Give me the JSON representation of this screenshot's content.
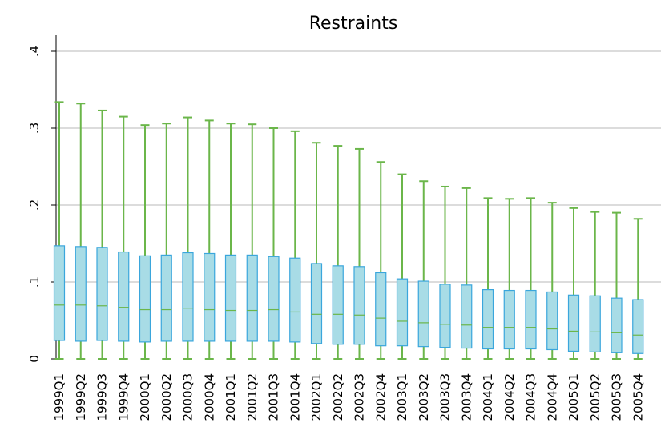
{
  "chart_data": {
    "type": "boxplot",
    "title": "Restraints",
    "xlabel": "",
    "ylabel": "",
    "ylim": [
      0,
      0.42
    ],
    "yticks": [
      0,
      0.1,
      0.2,
      0.3,
      0.4
    ],
    "ytick_labels": [
      "0",
      ".1",
      ".2",
      ".3",
      ".4"
    ],
    "grid": true,
    "colors": {
      "box_fill": "#a8dce6",
      "box_edge": "#3aa6dc",
      "whisker": "#6bb64a",
      "median": "#6bb64a",
      "grid": "#b9b9b9",
      "axis": "#000000"
    },
    "categories": [
      "1999Q1",
      "1999Q2",
      "1999Q3",
      "1999Q4",
      "2000Q1",
      "2000Q2",
      "2000Q3",
      "2000Q4",
      "2001Q1",
      "2001Q2",
      "2001Q3",
      "2001Q4",
      "2002Q1",
      "2002Q2",
      "2002Q3",
      "2002Q4",
      "2003Q1",
      "2003Q2",
      "2003Q3",
      "2003Q4",
      "2004Q1",
      "2004Q2",
      "2004Q3",
      "2004Q4",
      "2005Q1",
      "2005Q2",
      "2005Q3",
      "2005Q4"
    ],
    "boxes": [
      {
        "min": 0,
        "q1": 0.024,
        "median": 0.07,
        "q3": 0.147,
        "max": 0.334
      },
      {
        "min": 0,
        "q1": 0.023,
        "median": 0.07,
        "q3": 0.146,
        "max": 0.332
      },
      {
        "min": 0,
        "q1": 0.024,
        "median": 0.069,
        "q3": 0.145,
        "max": 0.323
      },
      {
        "min": 0,
        "q1": 0.023,
        "median": 0.067,
        "q3": 0.139,
        "max": 0.315
      },
      {
        "min": 0,
        "q1": 0.022,
        "median": 0.064,
        "q3": 0.134,
        "max": 0.304
      },
      {
        "min": 0,
        "q1": 0.023,
        "median": 0.064,
        "q3": 0.135,
        "max": 0.306
      },
      {
        "min": 0,
        "q1": 0.023,
        "median": 0.066,
        "q3": 0.138,
        "max": 0.314
      },
      {
        "min": 0,
        "q1": 0.023,
        "median": 0.064,
        "q3": 0.137,
        "max": 0.31
      },
      {
        "min": 0,
        "q1": 0.023,
        "median": 0.063,
        "q3": 0.135,
        "max": 0.306
      },
      {
        "min": 0,
        "q1": 0.023,
        "median": 0.063,
        "q3": 0.135,
        "max": 0.305
      },
      {
        "min": 0,
        "q1": 0.023,
        "median": 0.064,
        "q3": 0.133,
        "max": 0.3
      },
      {
        "min": 0,
        "q1": 0.022,
        "median": 0.061,
        "q3": 0.131,
        "max": 0.296
      },
      {
        "min": 0,
        "q1": 0.02,
        "median": 0.058,
        "q3": 0.124,
        "max": 0.281
      },
      {
        "min": 0,
        "q1": 0.019,
        "median": 0.058,
        "q3": 0.121,
        "max": 0.277
      },
      {
        "min": 0,
        "q1": 0.019,
        "median": 0.057,
        "q3": 0.12,
        "max": 0.273
      },
      {
        "min": 0,
        "q1": 0.017,
        "median": 0.053,
        "q3": 0.112,
        "max": 0.256
      },
      {
        "min": 0,
        "q1": 0.017,
        "median": 0.049,
        "q3": 0.104,
        "max": 0.24
      },
      {
        "min": 0,
        "q1": 0.016,
        "median": 0.047,
        "q3": 0.101,
        "max": 0.231
      },
      {
        "min": 0,
        "q1": 0.015,
        "median": 0.045,
        "q3": 0.097,
        "max": 0.224
      },
      {
        "min": 0,
        "q1": 0.014,
        "median": 0.044,
        "q3": 0.096,
        "max": 0.222
      },
      {
        "min": 0,
        "q1": 0.013,
        "median": 0.041,
        "q3": 0.09,
        "max": 0.209
      },
      {
        "min": 0,
        "q1": 0.013,
        "median": 0.041,
        "q3": 0.089,
        "max": 0.208
      },
      {
        "min": 0,
        "q1": 0.013,
        "median": 0.041,
        "q3": 0.089,
        "max": 0.209
      },
      {
        "min": 0,
        "q1": 0.012,
        "median": 0.039,
        "q3": 0.087,
        "max": 0.203
      },
      {
        "min": 0,
        "q1": 0.01,
        "median": 0.036,
        "q3": 0.083,
        "max": 0.196
      },
      {
        "min": 0,
        "q1": 0.009,
        "median": 0.035,
        "q3": 0.082,
        "max": 0.191
      },
      {
        "min": 0,
        "q1": 0.008,
        "median": 0.034,
        "q3": 0.079,
        "max": 0.19
      },
      {
        "min": 0,
        "q1": 0.007,
        "median": 0.031,
        "q3": 0.077,
        "max": 0.182
      }
    ]
  }
}
